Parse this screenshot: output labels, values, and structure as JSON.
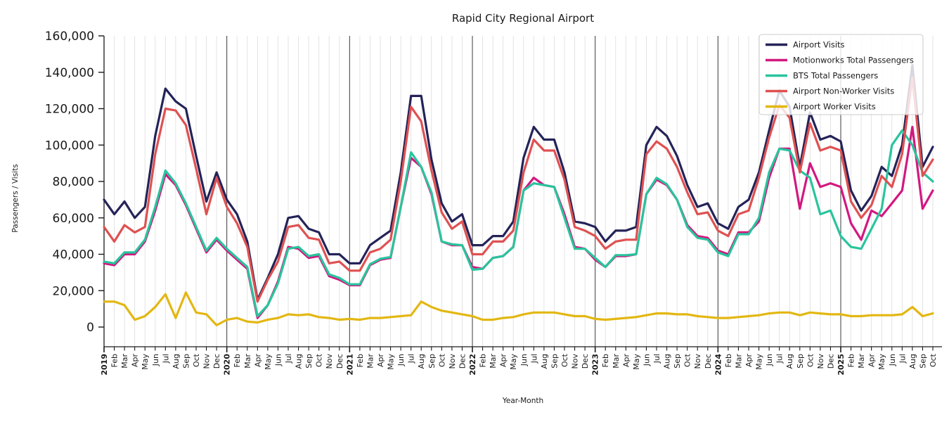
{
  "chart_data": {
    "type": "line",
    "title": "Rapid City Regional Airport",
    "xlabel": "Year-Month",
    "ylabel": "Passengers / Visits",
    "ylim": [
      0,
      160000
    ],
    "yticks": [
      0,
      20000,
      40000,
      60000,
      80000,
      100000,
      120000,
      140000,
      160000
    ],
    "grid": "vertical-monthly-gridlines-with-dark-year-separators",
    "legend_position": "upper-right",
    "x": [
      "2019",
      "Feb",
      "Mar",
      "Apr",
      "May",
      "Jun",
      "Jul",
      "Aug",
      "Sep",
      "Oct",
      "Nov",
      "Dec",
      "2020",
      "Feb",
      "Mar",
      "Apr",
      "May",
      "Jun",
      "Jul",
      "Aug",
      "Sep",
      "Oct",
      "Nov",
      "Dec",
      "2021",
      "Feb",
      "Mar",
      "Apr",
      "May",
      "Jun",
      "Jul",
      "Aug",
      "Sep",
      "Oct",
      "Nov",
      "Dec",
      "2022",
      "Feb",
      "Mar",
      "Apr",
      "May",
      "Jun",
      "Jul",
      "Aug",
      "Sep",
      "Oct",
      "Nov",
      "Dec",
      "2023",
      "Feb",
      "Mar",
      "Apr",
      "May",
      "Jun",
      "Jul",
      "Aug",
      "Sep",
      "Oct",
      "Nov",
      "Dec",
      "2024",
      "Feb",
      "Mar",
      "Apr",
      "May",
      "Jun",
      "Jul",
      "Aug",
      "Sep",
      "Oct",
      "Nov",
      "Dec",
      "2025",
      "Feb",
      "Mar",
      "Apr",
      "May",
      "Jun",
      "Jul",
      "Aug",
      "Sep",
      "Oct"
    ],
    "year_start_indices": [
      0,
      12,
      24,
      36,
      48,
      60,
      72
    ],
    "series": [
      {
        "name": "Airport Visits",
        "color": "#242358",
        "values": [
          70000,
          62000,
          69000,
          60000,
          66000,
          105000,
          131000,
          124000,
          120000,
          94000,
          69000,
          85000,
          70000,
          62000,
          47000,
          15000,
          27000,
          40000,
          60000,
          61000,
          54000,
          52000,
          40000,
          40000,
          35000,
          35000,
          45000,
          49000,
          53000,
          85000,
          127000,
          127000,
          92000,
          68000,
          58000,
          62000,
          45000,
          45000,
          50000,
          50000,
          58000,
          93000,
          110000,
          103000,
          103000,
          85000,
          58000,
          57000,
          55000,
          47000,
          53000,
          53000,
          55000,
          100000,
          110000,
          105000,
          94000,
          78000,
          66000,
          68000,
          57000,
          54000,
          66000,
          70000,
          85000,
          108000,
          130000,
          121000,
          88000,
          118000,
          103000,
          105000,
          102000,
          75000,
          64000,
          72000,
          88000,
          83000,
          100000,
          144000,
          88000,
          99000
        ]
      },
      {
        "name": "Motionworks Total Passengers",
        "color": "#d31880",
        "values": [
          35000,
          34000,
          40000,
          40000,
          47000,
          64000,
          84000,
          78000,
          67000,
          54000,
          41000,
          48000,
          42000,
          37000,
          32000,
          5000,
          12000,
          25000,
          44000,
          43000,
          38000,
          39000,
          28000,
          26000,
          23000,
          23000,
          34000,
          37000,
          38000,
          66000,
          93000,
          88000,
          73000,
          47000,
          45000,
          45000,
          33000,
          32000,
          38000,
          39000,
          44000,
          75000,
          82000,
          78000,
          77000,
          62000,
          44000,
          43000,
          37000,
          33000,
          39000,
          39000,
          40000,
          73000,
          81000,
          78000,
          70000,
          56000,
          50000,
          49000,
          42000,
          40000,
          52000,
          52000,
          58000,
          82000,
          98000,
          98000,
          65000,
          90000,
          77000,
          79000,
          77000,
          57000,
          48000,
          64000,
          61000,
          68000,
          75000,
          110000,
          65000,
          75000
        ]
      },
      {
        "name": "BTS Total Passengers",
        "color": "#29c49d",
        "values": [
          36000,
          35000,
          41000,
          41000,
          48000,
          66000,
          86000,
          79000,
          68000,
          55000,
          42000,
          49000,
          43000,
          38000,
          33000,
          6000,
          12000,
          24000,
          43000,
          44000,
          39000,
          40000,
          29000,
          27000,
          23500,
          23500,
          34500,
          37500,
          38500,
          66000,
          96000,
          88000,
          74000,
          47000,
          45500,
          45000,
          31500,
          32000,
          38000,
          39000,
          44000,
          75000,
          79000,
          78000,
          77000,
          60000,
          43000,
          43000,
          38000,
          33000,
          39500,
          39500,
          40000,
          73000,
          82000,
          78500,
          70000,
          55000,
          49000,
          48000,
          41000,
          39000,
          51000,
          51000,
          60000,
          85000,
          98000,
          97000,
          86000,
          82000,
          62000,
          64000,
          50000,
          44000,
          43000,
          54000,
          65000,
          100000,
          108000,
          100000,
          85000,
          80000
        ]
      },
      {
        "name": "Airport Non-Worker Visits",
        "color": "#df5152",
        "values": [
          55000,
          47000,
          56000,
          52000,
          55000,
          95000,
          120000,
          119000,
          111000,
          87000,
          62000,
          82000,
          66000,
          57000,
          44000,
          14000,
          26000,
          36000,
          55000,
          56000,
          49000,
          48000,
          35000,
          36000,
          31000,
          31000,
          41000,
          43000,
          48000,
          80000,
          121000,
          113000,
          86000,
          63000,
          54000,
          58000,
          40000,
          40000,
          47000,
          47000,
          53000,
          85000,
          103000,
          97000,
          97000,
          81000,
          55000,
          53000,
          50000,
          43000,
          47000,
          48000,
          48000,
          95000,
          102000,
          98000,
          88000,
          74000,
          62000,
          63000,
          53000,
          50000,
          62000,
          64000,
          82000,
          104000,
          122000,
          115000,
          85000,
          112000,
          97000,
          99000,
          97000,
          69000,
          60000,
          67000,
          83000,
          77000,
          95000,
          137000,
          83000,
          92000
        ]
      },
      {
        "name": "Airport Worker Visits",
        "color": "#e3b712",
        "values": [
          14000,
          14000,
          12000,
          4000,
          6000,
          11000,
          18000,
          5000,
          19000,
          8000,
          7000,
          1000,
          4000,
          5000,
          3000,
          2500,
          4000,
          5000,
          7000,
          6500,
          7000,
          5500,
          5000,
          4000,
          4500,
          4000,
          5000,
          5000,
          5500,
          6000,
          6500,
          14000,
          11000,
          9000,
          8000,
          7000,
          6000,
          4000,
          4000,
          5000,
          5500,
          7000,
          8000,
          8000,
          8000,
          7000,
          6000,
          6000,
          4500,
          4000,
          4500,
          5000,
          5500,
          6500,
          7500,
          7500,
          7000,
          7000,
          6000,
          5500,
          5000,
          5000,
          5500,
          6000,
          6500,
          7500,
          8000,
          8000,
          6500,
          8000,
          7500,
          7000,
          7000,
          6000,
          6000,
          6500,
          6500,
          6500,
          7000,
          11000,
          6000,
          7500
        ]
      }
    ]
  }
}
